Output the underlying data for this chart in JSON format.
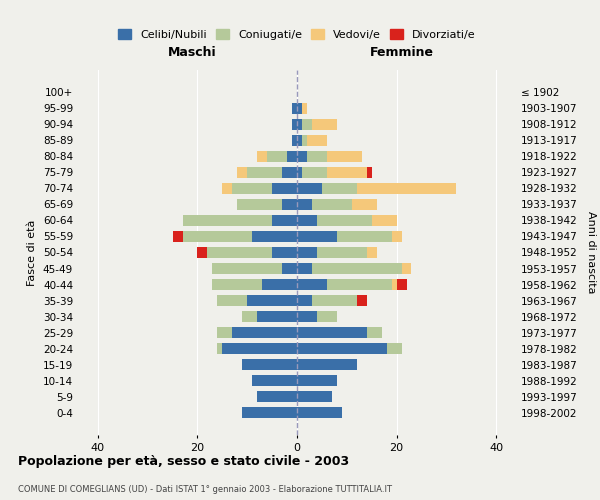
{
  "age_groups": [
    "100+",
    "95-99",
    "90-94",
    "85-89",
    "80-84",
    "75-79",
    "70-74",
    "65-69",
    "60-64",
    "55-59",
    "50-54",
    "45-49",
    "40-44",
    "35-39",
    "30-34",
    "25-29",
    "20-24",
    "15-19",
    "10-14",
    "5-9",
    "0-4"
  ],
  "birth_years": [
    "≤ 1902",
    "1903-1907",
    "1908-1912",
    "1913-1917",
    "1918-1922",
    "1923-1927",
    "1928-1932",
    "1933-1937",
    "1938-1942",
    "1943-1947",
    "1948-1952",
    "1953-1957",
    "1958-1962",
    "1963-1967",
    "1968-1972",
    "1973-1977",
    "1978-1982",
    "1983-1987",
    "1988-1992",
    "1993-1997",
    "1998-2002"
  ],
  "colors": {
    "celibi": "#3a6fa8",
    "coniugati": "#b5c99a",
    "vedovi": "#f5c87a",
    "divorziati": "#d9221c"
  },
  "males": {
    "celibi": [
      0,
      1,
      1,
      1,
      2,
      3,
      5,
      3,
      5,
      9,
      5,
      3,
      7,
      10,
      8,
      13,
      15,
      11,
      9,
      8,
      11
    ],
    "coniugati": [
      0,
      0,
      0,
      0,
      4,
      7,
      8,
      9,
      18,
      14,
      13,
      14,
      10,
      6,
      3,
      3,
      1,
      0,
      0,
      0,
      0
    ],
    "vedovi": [
      0,
      0,
      0,
      0,
      2,
      2,
      2,
      0,
      0,
      0,
      0,
      0,
      0,
      0,
      0,
      0,
      0,
      0,
      0,
      0,
      0
    ],
    "divorziati": [
      0,
      0,
      0,
      0,
      0,
      0,
      0,
      0,
      0,
      2,
      2,
      0,
      0,
      0,
      0,
      0,
      0,
      0,
      0,
      0,
      0
    ]
  },
  "females": {
    "celibi": [
      0,
      1,
      1,
      1,
      2,
      1,
      5,
      3,
      4,
      8,
      4,
      3,
      6,
      3,
      4,
      14,
      18,
      12,
      8,
      7,
      9
    ],
    "coniugati": [
      0,
      0,
      2,
      1,
      4,
      5,
      7,
      8,
      11,
      11,
      10,
      18,
      13,
      9,
      4,
      3,
      3,
      0,
      0,
      0,
      0
    ],
    "vedovi": [
      0,
      1,
      5,
      4,
      7,
      8,
      20,
      5,
      5,
      2,
      2,
      2,
      1,
      0,
      0,
      0,
      0,
      0,
      0,
      0,
      0
    ],
    "divorziati": [
      0,
      0,
      0,
      0,
      0,
      1,
      0,
      0,
      0,
      0,
      0,
      0,
      2,
      2,
      0,
      0,
      0,
      0,
      0,
      0,
      0
    ]
  },
  "xlim": 44,
  "title": "Popolazione per età, sesso e stato civile - 2003",
  "subtitle": "COMUNE DI COMEGLIANS (UD) - Dati ISTAT 1° gennaio 2003 - Elaborazione TUTTITALIA.IT",
  "ylabel_left": "Fasce di età",
  "ylabel_right": "Anni di nascita",
  "header_left": "Maschi",
  "header_right": "Femmine",
  "legend_labels": [
    "Celibi/Nubili",
    "Coniugati/e",
    "Vedovi/e",
    "Divorziati/e"
  ],
  "bg_color": "#f0f0eb",
  "plot_bg": "#f0f0eb"
}
